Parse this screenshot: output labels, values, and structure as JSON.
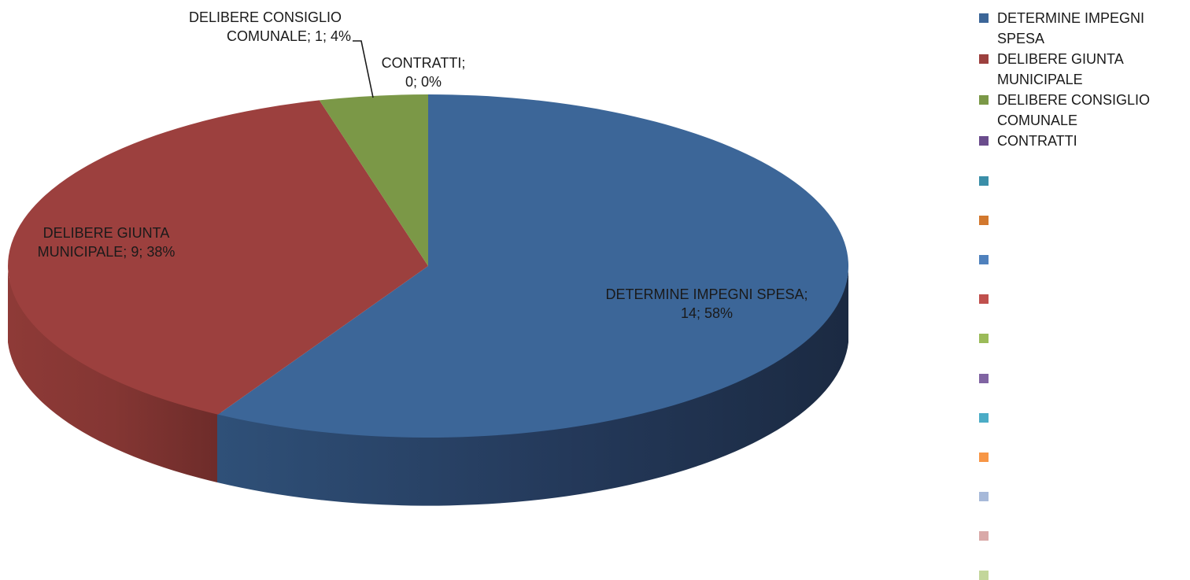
{
  "chart_data": {
    "type": "pie",
    "three_d": true,
    "title": "",
    "slices": [
      {
        "name": "DETERMINE IMPEGNI SPESA",
        "value": 14,
        "percent": "58%",
        "label": "DETERMINE IMPEGNI SPESA; 14; 58%",
        "color": "#3c6698"
      },
      {
        "name": "DELIBERE GIUNTA MUNICIPALE",
        "value": 9,
        "percent": "38%",
        "label": "DELIBERE GIUNTA MUNICIPALE; 9; 38%",
        "color": "#9c403e"
      },
      {
        "name": "DELIBERE CONSIGLIO COMUNALE",
        "value": 1,
        "percent": "4%",
        "label": "DELIBERE CONSIGLIO COMUNALE; 1; 4%",
        "color": "#7b9847"
      },
      {
        "name": "CONTRATTI",
        "value": 0,
        "percent": "0%",
        "label": "CONTRATTI; 0; 0%",
        "color": "#6a4c8c"
      }
    ],
    "legend": {
      "position": "right",
      "entries": [
        {
          "label": "DETERMINE IMPEGNI SPESA",
          "color": "#3c6698"
        },
        {
          "label": "DELIBERE GIUNTA MUNICIPALE",
          "color": "#9c403e"
        },
        {
          "label": "DELIBERE CONSIGLIO COMUNALE",
          "color": "#7b9847"
        },
        {
          "label": "CONTRATTI",
          "color": "#6a4c8c"
        },
        {
          "label": "",
          "color": "#3a8ea8"
        },
        {
          "label": "",
          "color": "#d2782e"
        },
        {
          "label": "",
          "color": "#4f81bd"
        },
        {
          "label": "",
          "color": "#c0504d"
        },
        {
          "label": "",
          "color": "#9bbb59"
        },
        {
          "label": "",
          "color": "#8064a2"
        },
        {
          "label": "",
          "color": "#4bacc6"
        },
        {
          "label": "",
          "color": "#f79646"
        },
        {
          "label": "",
          "color": "#a7b9d9"
        },
        {
          "label": "",
          "color": "#d9a9a8"
        },
        {
          "label": "",
          "color": "#c3d69b"
        }
      ]
    }
  },
  "labels": {
    "determine": {
      "line1": "DETERMINE IMPEGNI SPESA;",
      "line2": "14; 58%"
    },
    "giunta": {
      "line1": "DELIBERE GIUNTA",
      "line2": "MUNICIPALE; 9; 38%"
    },
    "consiglio": {
      "line1": "DELIBERE CONSIGLIO",
      "line2": "COMUNALE; 1; 4%"
    },
    "contratti": {
      "line1": "CONTRATTI;",
      "line2": "0; 0%"
    }
  },
  "legend_text": {
    "determine": {
      "line1": "DETERMINE IMPEGNI",
      "line2": "SPESA"
    },
    "giunta": {
      "line1": "DELIBERE GIUNTA",
      "line2": "MUNICIPALE"
    },
    "consiglio": {
      "line1": "DELIBERE CONSIGLIO",
      "line2": "COMUNALE"
    },
    "contratti": {
      "line1": "CONTRATTI"
    }
  }
}
